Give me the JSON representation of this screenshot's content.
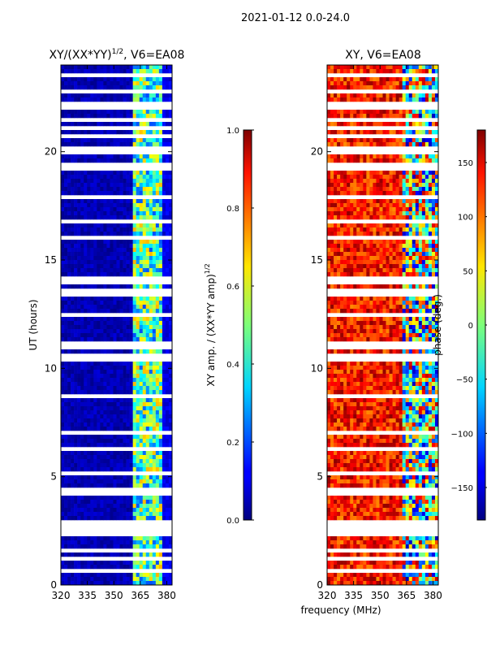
{
  "figure": {
    "suptitle": "2021-01-12 0.0-24.0",
    "xlabel": "frequency (MHz)"
  },
  "chart_data": [
    {
      "type": "heatmap",
      "title_prefix": "XY/(XX*YY)",
      "title_exp": "1/2",
      "title_suffix": ", V6=EA08",
      "xlabel": "",
      "ylabel": "UT (hours)",
      "xlim": [
        320,
        383
      ],
      "ylim": [
        0,
        24
      ],
      "xticks": [
        320,
        335,
        350,
        365,
        380
      ],
      "yticks": [
        0,
        5,
        10,
        15,
        20
      ],
      "colormap": "jet",
      "colorbar": {
        "label_prefix": "XY amp. / (XX*YY amp)",
        "label_exp": "1/2",
        "range": [
          0.0,
          1.0
        ],
        "ticks": [
          "0.0",
          "0.2",
          "0.4",
          "0.6",
          "0.8",
          "1.0"
        ],
        "tick_values": [
          0.0,
          0.2,
          0.4,
          0.6,
          0.8,
          1.0
        ]
      },
      "z_description_by_band": [
        {
          "freq_range": [
            320,
            360
          ],
          "value": 0.05
        },
        {
          "freq_range": [
            360,
            378
          ],
          "value": 0.45
        },
        {
          "freq_range": [
            378,
            383
          ],
          "value": 0.1
        }
      ]
    },
    {
      "type": "heatmap",
      "title": "XY, V6=EA08",
      "xlabel": "",
      "ylabel": "",
      "xlim": [
        320,
        383
      ],
      "ylim": [
        0,
        24
      ],
      "xticks": [
        320,
        335,
        350,
        365,
        380
      ],
      "yticks": [
        0,
        5,
        10,
        15,
        20
      ],
      "colormap": "jet",
      "colorbar": {
        "label": "phase (deg.)",
        "range": [
          -180,
          180
        ],
        "ticks": [
          "150",
          "100",
          "50",
          "0",
          "−50",
          "−100",
          "−150"
        ],
        "tick_values": [
          150,
          100,
          50,
          0,
          -50,
          -100,
          -150
        ]
      },
      "z_description_by_band": [
        {
          "freq_range": [
            320,
            362
          ],
          "value": 130
        },
        {
          "freq_range": [
            362,
            383
          ],
          "value": 0
        }
      ]
    }
  ]
}
